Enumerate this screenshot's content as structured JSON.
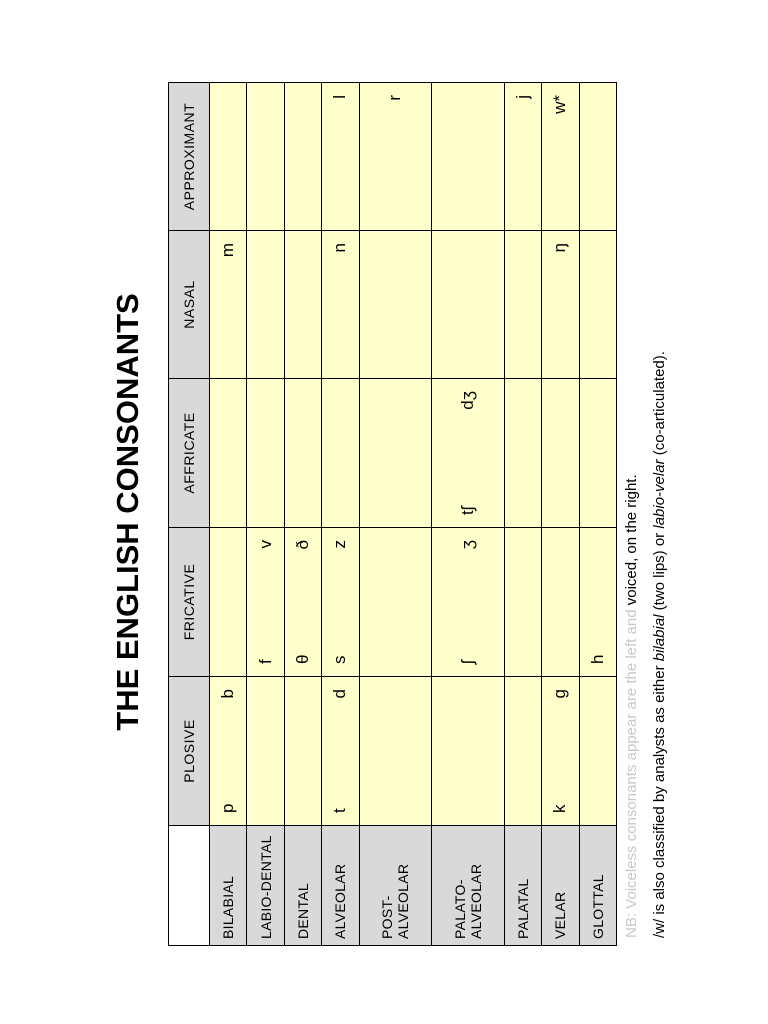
{
  "title": "THE ENGLISH CONSONANTS",
  "columns": [
    "PLOSIVE",
    "FRICATIVE",
    "AFFRICATE",
    "NASAL",
    "APPROXIMANT"
  ],
  "rows": [
    {
      "label": "BILABIAL",
      "label2": "",
      "cells": [
        [
          "p",
          "b"
        ],
        [
          "",
          ""
        ],
        [
          "",
          ""
        ],
        [
          "",
          "m"
        ],
        [
          "",
          ""
        ]
      ]
    },
    {
      "label": "LABIO-DENTAL",
      "label2": "",
      "cells": [
        [
          "",
          ""
        ],
        [
          "f",
          "v"
        ],
        [
          "",
          ""
        ],
        [
          "",
          ""
        ],
        [
          "",
          ""
        ]
      ]
    },
    {
      "label": "DENTAL",
      "label2": "",
      "cells": [
        [
          "",
          ""
        ],
        [
          "θ",
          "ð"
        ],
        [
          "",
          ""
        ],
        [
          "",
          ""
        ],
        [
          "",
          ""
        ]
      ]
    },
    {
      "label": "ALVEOLAR",
      "label2": "",
      "cells": [
        [
          "t",
          "d"
        ],
        [
          "s",
          "z"
        ],
        [
          "",
          ""
        ],
        [
          "",
          "n"
        ],
        [
          "",
          "l"
        ]
      ]
    },
    {
      "label": "POST-",
      "label2": "ALVEOLAR",
      "cells": [
        [
          "",
          ""
        ],
        [
          "",
          ""
        ],
        [
          "",
          ""
        ],
        [
          "",
          ""
        ],
        [
          "",
          "r"
        ]
      ]
    },
    {
      "label": "PALATO-",
      "label2": "ALVEOLAR",
      "cells": [
        [
          "",
          ""
        ],
        [
          "ʃ",
          "ʒ"
        ],
        [
          "tʃ",
          "dʒ"
        ],
        [
          "",
          ""
        ],
        [
          "",
          ""
        ]
      ]
    },
    {
      "label": "PALATAL",
      "label2": "",
      "cells": [
        [
          "",
          ""
        ],
        [
          "",
          ""
        ],
        [
          "",
          ""
        ],
        [
          "",
          ""
        ],
        [
          "",
          "j"
        ]
      ]
    },
    {
      "label": "VELAR",
      "label2": "",
      "cells": [
        [
          "k",
          "g"
        ],
        [
          "",
          ""
        ],
        [
          "",
          ""
        ],
        [
          "",
          "ŋ"
        ],
        [
          "",
          "w*"
        ]
      ]
    },
    {
      "label": "GLOTTAL",
      "label2": "",
      "cells": [
        [
          "",
          ""
        ],
        [
          "h",
          ""
        ],
        [
          "",
          ""
        ],
        [
          "",
          ""
        ],
        [
          "",
          ""
        ]
      ]
    }
  ],
  "notes": {
    "nb_prefix": "NB:",
    "nb_faint": " Voiceless consonants appear are the left and",
    "nb_rest": " voiced, on the right.",
    "w_part1": "/w/ is also classified by analysts as either ",
    "w_bilabial": "bilabial",
    "w_part2": " (two lips) or ",
    "w_labiovelar": "labio-velar",
    "w_part3": " (co-articulated)."
  }
}
